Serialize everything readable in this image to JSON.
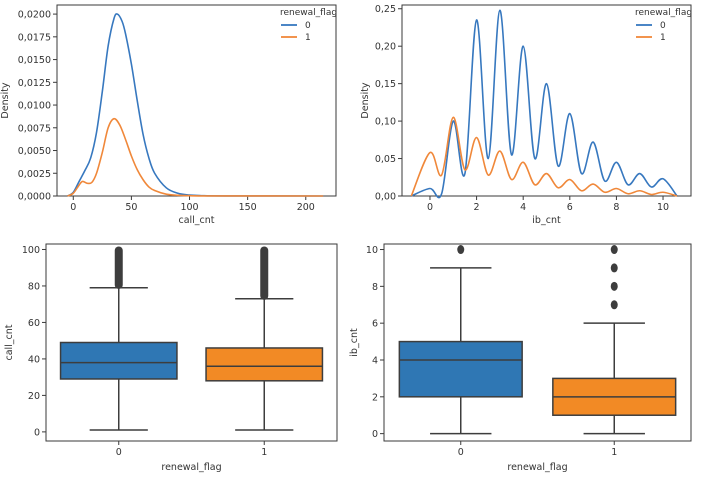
{
  "colors": {
    "series0": "#3778bf",
    "series1": "#f0883a",
    "box0": "#2f77b4",
    "box1": "#f28a25",
    "line": "#3d3d3d"
  },
  "chart_data": [
    {
      "id": "kde_call_cnt",
      "type": "line",
      "xlabel": "call_cnt",
      "ylabel": "Density",
      "xlim": [
        -14,
        226
      ],
      "ylim": [
        0,
        0.021
      ],
      "x_ticks": [
        0,
        50,
        100,
        150,
        200
      ],
      "x_tick_labels": [
        "0",
        "50",
        "100",
        "150",
        "200"
      ],
      "y_ticks": [
        0,
        0.0025,
        0.005,
        0.0075,
        0.01,
        0.0125,
        0.015,
        0.0175,
        0.02
      ],
      "y_tick_labels": [
        "0,0000",
        "0,0025",
        "0,0050",
        "0,0075",
        "0,0100",
        "0,0125",
        "0,0150",
        "0,0175",
        "0,0200"
      ],
      "legend": {
        "title": "renewal_flag",
        "position": "top-right",
        "entries": [
          "0",
          "1"
        ]
      },
      "series": [
        {
          "name": "0",
          "x": [
            -5,
            0,
            5,
            10,
            15,
            20,
            25,
            30,
            35,
            38,
            42,
            45,
            50,
            55,
            60,
            65,
            70,
            80,
            90,
            100,
            110,
            130,
            215
          ],
          "y": [
            0,
            0.0004,
            0.0016,
            0.0028,
            0.0042,
            0.007,
            0.0115,
            0.0165,
            0.0195,
            0.02,
            0.0192,
            0.0178,
            0.0145,
            0.0105,
            0.0068,
            0.0042,
            0.0025,
            0.0009,
            0.0003,
            0.0001,
            4e-05,
            1e-05,
            0
          ]
        },
        {
          "name": "1",
          "x": [
            -5,
            0,
            5,
            8,
            12,
            16,
            20,
            25,
            30,
            35,
            40,
            45,
            50,
            55,
            60,
            65,
            70,
            80,
            90,
            100,
            120,
            215
          ],
          "y": [
            0,
            0.0003,
            0.0012,
            0.0016,
            0.0014,
            0.0015,
            0.0025,
            0.0048,
            0.0075,
            0.0085,
            0.0078,
            0.0062,
            0.0044,
            0.0029,
            0.0018,
            0.001,
            0.0006,
            0.0002,
            8e-05,
            3e-05,
            1e-05,
            0
          ]
        }
      ]
    },
    {
      "id": "kde_ib_cnt",
      "type": "line",
      "xlabel": "ib_cnt",
      "ylabel": "Density",
      "xlim": [
        -1.2,
        11.2
      ],
      "ylim": [
        0,
        0.255
      ],
      "x_ticks": [
        0,
        2,
        4,
        6,
        8,
        10
      ],
      "x_tick_labels": [
        "0",
        "2",
        "4",
        "6",
        "8",
        "10"
      ],
      "y_ticks": [
        0,
        0.05,
        0.1,
        0.15,
        0.2,
        0.25
      ],
      "y_tick_labels": [
        "0,00",
        "0,05",
        "0,10",
        "0,15",
        "0,20",
        "0,25"
      ],
      "legend": {
        "title": "renewal_flag",
        "position": "top-right",
        "entries": [
          "0",
          "1"
        ]
      },
      "series": [
        {
          "name": "0",
          "peaks_x": [
            0,
            1,
            2,
            3,
            4,
            5,
            6,
            7,
            8,
            9,
            10
          ],
          "peaks_y": [
            0.01,
            0.1,
            0.235,
            0.248,
            0.2,
            0.15,
            0.11,
            0.072,
            0.045,
            0.03,
            0.023
          ],
          "valleys_y": [
            0.003,
            0.03,
            0.05,
            0.055,
            0.05,
            0.04,
            0.03,
            0.02,
            0.015,
            0.012
          ],
          "x_range": [
            -0.8,
            10.6
          ]
        },
        {
          "name": "1",
          "peaks_x": [
            0,
            1,
            2,
            3,
            4,
            5,
            6,
            7,
            8,
            9,
            10
          ],
          "peaks_y": [
            0.058,
            0.105,
            0.078,
            0.06,
            0.045,
            0.03,
            0.022,
            0.016,
            0.01,
            0.007,
            0.005
          ],
          "valleys_y": [
            0.028,
            0.035,
            0.028,
            0.022,
            0.015,
            0.011,
            0.007,
            0.005,
            0.003,
            0.002
          ],
          "x_range": [
            -0.8,
            10.6
          ]
        }
      ]
    },
    {
      "id": "box_call_cnt",
      "type": "box",
      "xlabel": "renewal_flag",
      "ylabel": "call_cnt",
      "categories": [
        "0",
        "1"
      ],
      "ylim": [
        -5,
        103
      ],
      "y_ticks": [
        0,
        20,
        40,
        60,
        80,
        100
      ],
      "y_tick_labels": [
        "0",
        "20",
        "40",
        "60",
        "80",
        "100"
      ],
      "boxes": [
        {
          "name": "0",
          "whisker_low": 1,
          "q1": 29,
          "median": 38,
          "q3": 49,
          "whisker_high": 79,
          "outliers_from": 80,
          "outliers_to": 100
        },
        {
          "name": "1",
          "whisker_low": 1,
          "q1": 28,
          "median": 36,
          "q3": 46,
          "whisker_high": 73,
          "outliers_from": 74,
          "outliers_to": 100
        }
      ]
    },
    {
      "id": "box_ib_cnt",
      "type": "box",
      "xlabel": "renewal_flag",
      "ylabel": "ib_cnt",
      "categories": [
        "0",
        "1"
      ],
      "ylim": [
        -0.4,
        10.3
      ],
      "y_ticks": [
        0,
        2,
        4,
        6,
        8,
        10
      ],
      "y_tick_labels": [
        "0",
        "2",
        "4",
        "6",
        "8",
        "10"
      ],
      "boxes": [
        {
          "name": "0",
          "whisker_low": 0,
          "q1": 2,
          "median": 4,
          "q3": 5,
          "whisker_high": 9,
          "outliers": [
            10
          ]
        },
        {
          "name": "1",
          "whisker_low": 0,
          "q1": 1,
          "median": 2,
          "q3": 3,
          "whisker_high": 6,
          "outliers": [
            7,
            8,
            9,
            10
          ]
        }
      ]
    }
  ]
}
